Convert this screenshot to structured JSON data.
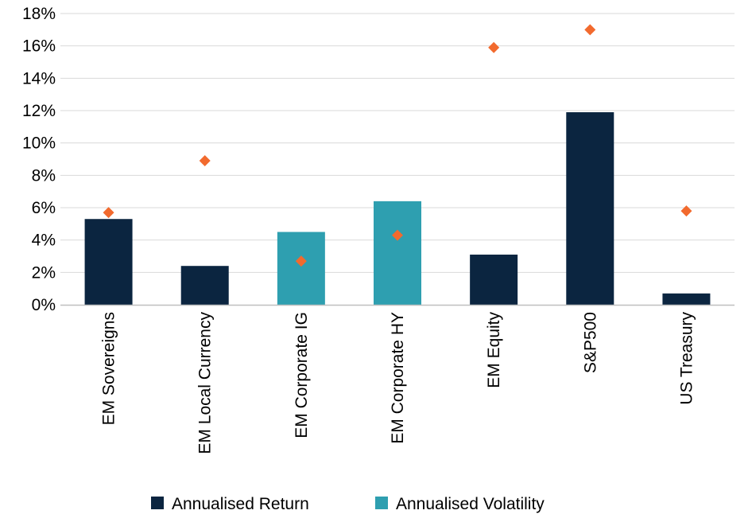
{
  "chart_data": {
    "type": "bar",
    "title": "",
    "xlabel": "",
    "ylabel": "",
    "ylim": [
      0,
      18
    ],
    "yticks": [
      0,
      2,
      4,
      6,
      8,
      10,
      12,
      14,
      16,
      18
    ],
    "ytick_labels": [
      "0%",
      "2%",
      "4%",
      "6%",
      "8%",
      "10%",
      "12%",
      "14%",
      "16%",
      "18%"
    ],
    "grid": true,
    "legend_position": "bottom",
    "categories": [
      "EM Sovereigns",
      "EM Local Currency",
      "EM Corporate IG",
      "EM Corporate HY",
      "EM Equity",
      "S&P500",
      "US Treasury"
    ],
    "series": [
      {
        "name": "Annualised Return",
        "kind": "bar",
        "values": [
          5.3,
          2.4,
          4.5,
          6.4,
          3.1,
          11.9,
          0.7
        ],
        "bar_colors": [
          "#0b2540",
          "#0b2540",
          "#2e9fb0",
          "#2e9fb0",
          "#0b2540",
          "#0b2540",
          "#0b2540"
        ]
      },
      {
        "name": "Annualised Volatility",
        "kind": "diamond-marker",
        "values": [
          5.7,
          8.9,
          2.7,
          4.3,
          15.9,
          17.0,
          5.8
        ],
        "color": "#f26a2e"
      }
    ],
    "legend": [
      {
        "label": "Annualised Return",
        "color": "#0b2540"
      },
      {
        "label": "Annualised Volatility",
        "color": "#2e9fb0"
      }
    ],
    "colors": {
      "grid": "#d9d9d9",
      "axis": "#bfbfbf"
    }
  }
}
